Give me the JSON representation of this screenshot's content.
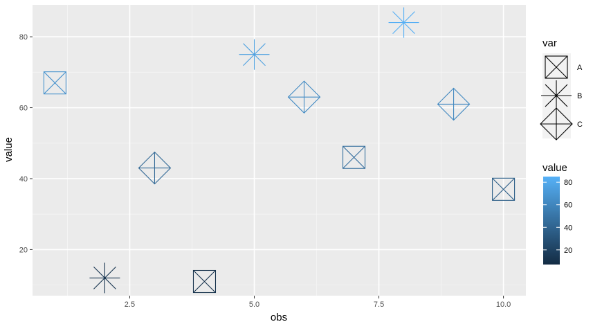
{
  "chart_data": {
    "type": "scatter",
    "xlabel": "obs",
    "ylabel": "value",
    "xlim": [
      0.55,
      10.45
    ],
    "ylim": [
      7,
      89
    ],
    "x_ticks": [
      2.5,
      5.0,
      7.5,
      10.0
    ],
    "x_tick_labels": [
      "2.5",
      "5.0",
      "7.5",
      "10.0"
    ],
    "y_ticks": [
      20,
      40,
      60,
      80
    ],
    "y_tick_labels": [
      "20",
      "40",
      "60",
      "80"
    ],
    "grid": true,
    "points": [
      {
        "x": 1,
        "y": 67,
        "var": "A"
      },
      {
        "x": 2,
        "y": 12,
        "var": "B"
      },
      {
        "x": 3,
        "y": 43,
        "var": "C"
      },
      {
        "x": 4,
        "y": 11,
        "var": "A"
      },
      {
        "x": 5,
        "y": 75,
        "var": "B"
      },
      {
        "x": 6,
        "y": 63,
        "var": "C"
      },
      {
        "x": 7,
        "y": 46,
        "var": "A"
      },
      {
        "x": 8,
        "y": 84,
        "var": "B"
      },
      {
        "x": 9,
        "y": 61,
        "var": "C"
      },
      {
        "x": 10,
        "y": 37,
        "var": "A"
      }
    ],
    "legend_shape": {
      "title": "var",
      "entries": [
        "A",
        "B",
        "C"
      ]
    },
    "legend_color": {
      "title": "value",
      "range": [
        7,
        85
      ],
      "tick_values": [
        20,
        40,
        60,
        80
      ],
      "tick_labels": [
        "20",
        "40",
        "60",
        "80"
      ],
      "low_color": "#132B43",
      "high_color": "#56B1F7"
    },
    "legend_placement": "right"
  }
}
